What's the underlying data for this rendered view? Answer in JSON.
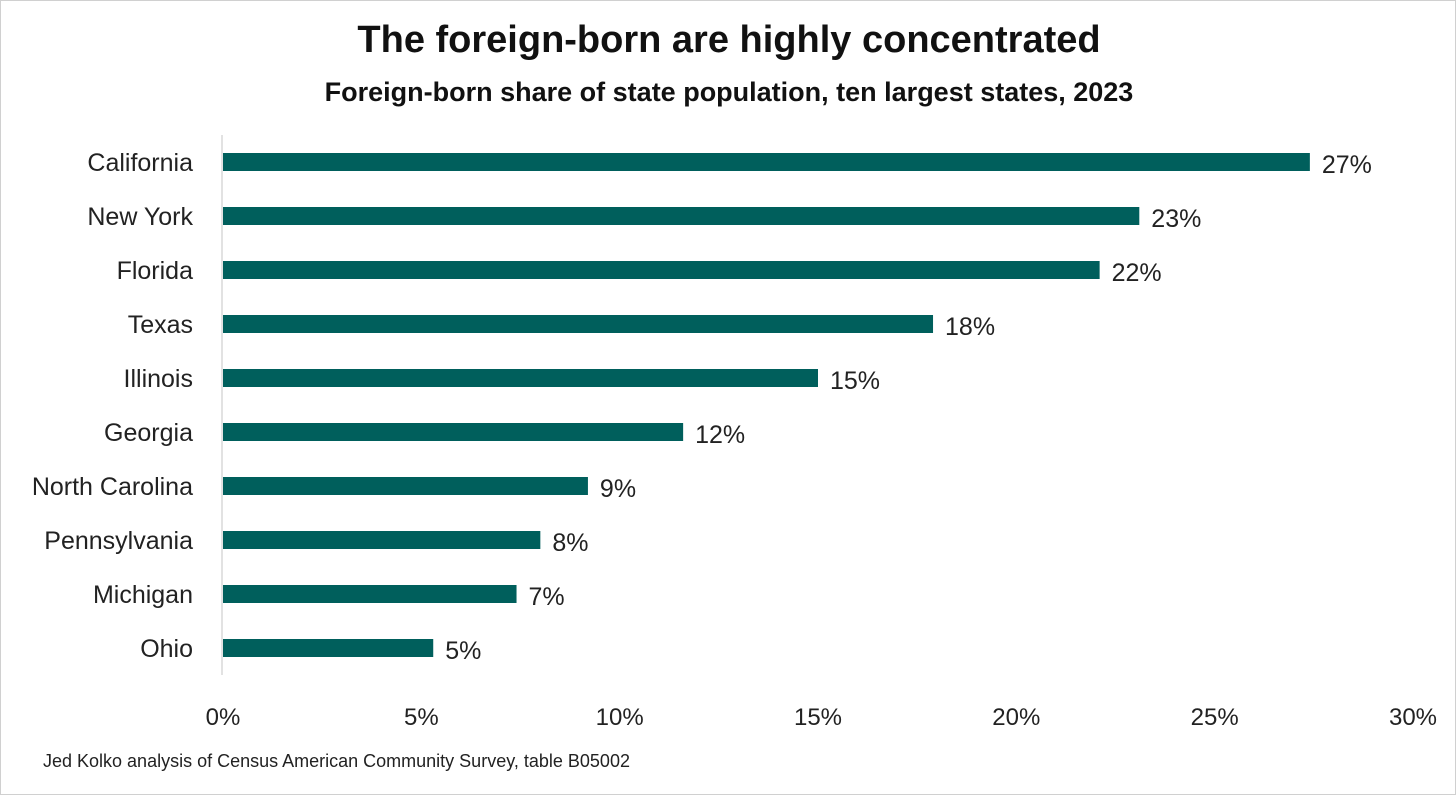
{
  "chart_data": {
    "type": "bar",
    "orientation": "horizontal",
    "title": "The foreign-born are highly concentrated",
    "subtitle": "Foreign-born share of state population, ten largest states, 2023",
    "source": "Jed Kolko analysis of Census American Community Survey, table B05002",
    "categories": [
      "California",
      "New York",
      "Florida",
      "Texas",
      "Illinois",
      "Georgia",
      "North Carolina",
      "Pennsylvania",
      "Michigan",
      "Ohio"
    ],
    "values": [
      27.4,
      23.1,
      22.1,
      17.9,
      15.0,
      11.6,
      9.2,
      8.0,
      7.4,
      5.3
    ],
    "value_labels": [
      "27%",
      "23%",
      "22%",
      "18%",
      "15%",
      "12%",
      "9%",
      "8%",
      "7%",
      "5%"
    ],
    "xlim": [
      0,
      30
    ],
    "xticks": [
      0,
      5,
      10,
      15,
      20,
      25,
      30
    ],
    "xtick_labels": [
      "0%",
      "5%",
      "10%",
      "15%",
      "20%",
      "25%",
      "30%"
    ],
    "xlabel": "",
    "ylabel": "",
    "grid": false,
    "legend": "none",
    "bar_color": "#005f5c"
  }
}
